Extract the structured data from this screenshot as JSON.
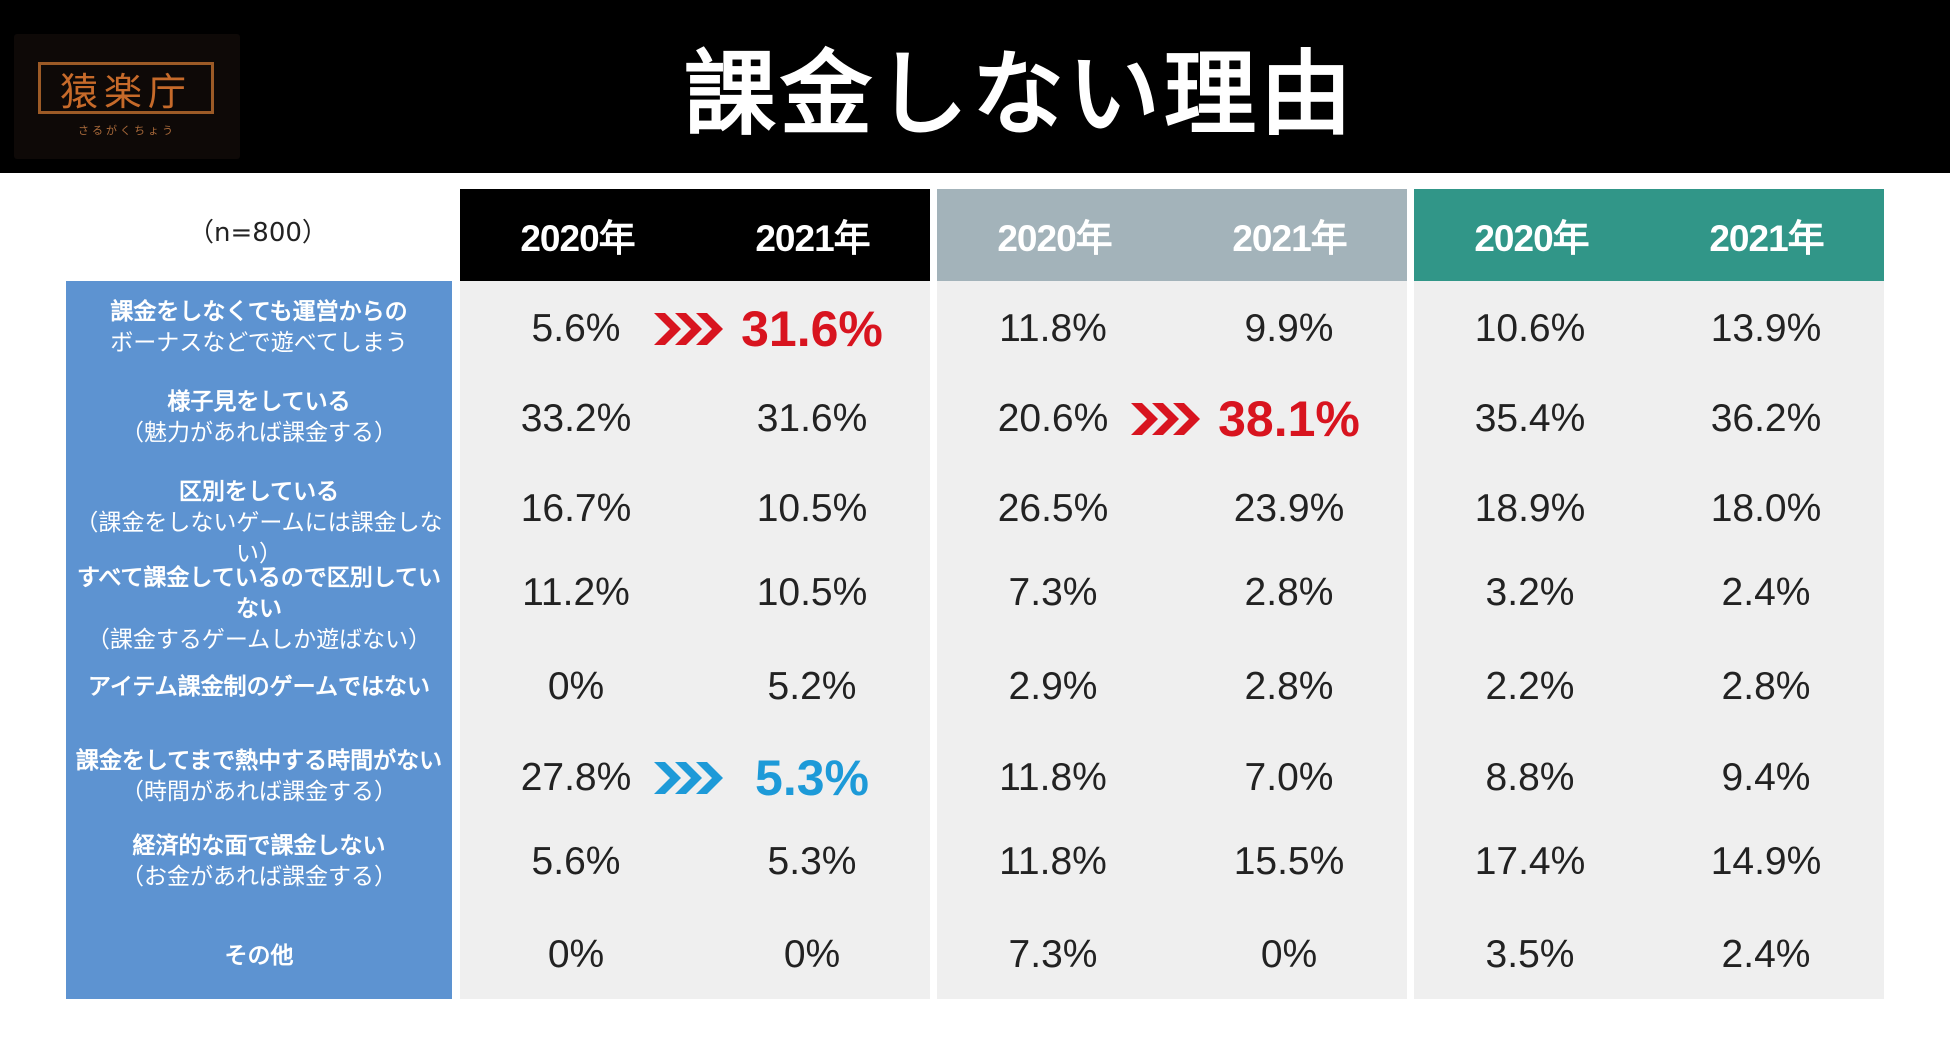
{
  "header": {
    "title": "課金しない理由",
    "logo_text": "猿楽庁",
    "logo_sub": "さるがくちょう"
  },
  "n_label": "（n=800）",
  "colors": {
    "header_bg": "#000000",
    "panel1_header": "#000000",
    "panel2_header": "#a3b3ba",
    "panel3_header": "#319688",
    "row_label_bg": "#5d93d1",
    "increase": "#d8141f",
    "decrease": "#1d9ad8"
  },
  "chart_data": {
    "type": "table",
    "title": "課金しない理由",
    "sample_size": "（n=800）",
    "rows": [
      {
        "line1": "課金をしなくても運営からの",
        "line2": "ボーナスなどで遊べてしまう"
      },
      {
        "line1": "様子見をしている",
        "line2": "（魅力があれば課金する）"
      },
      {
        "line1": "区別をしている",
        "line2": "（課金をしないゲームには課金しない）"
      },
      {
        "line1": "すべて課金しているので区別していない",
        "line2": "（課金するゲームしか遊ばない）"
      },
      {
        "line1": "アイテム課金制のゲームではない",
        "line2": ""
      },
      {
        "line1": "課金をしてまで熱中する時間がない",
        "line2": "（時間があれば課金する）"
      },
      {
        "line1": "経済的な面で課金しない",
        "line2": "（お金があれば課金する）"
      },
      {
        "line1": "その他",
        "line2": ""
      }
    ],
    "groups": [
      {
        "header_color": "#000000",
        "columns": [
          "2020年",
          "2021年"
        ],
        "values_2020": [
          "5.6%",
          "33.2%",
          "16.7%",
          "11.2%",
          "0%",
          "27.8%",
          "5.6%",
          "0%"
        ],
        "values_2021": [
          "31.6%",
          "31.6%",
          "10.5%",
          "10.5%",
          "5.2%",
          "5.3%",
          "5.3%",
          "0%"
        ]
      },
      {
        "header_color": "#a3b3ba",
        "columns": [
          "2020年",
          "2021年"
        ],
        "values_2020": [
          "11.8%",
          "20.6%",
          "26.5%",
          "7.3%",
          "2.9%",
          "11.8%",
          "11.8%",
          "7.3%"
        ],
        "values_2021": [
          "9.9%",
          "38.1%",
          "23.9%",
          "2.8%",
          "2.8%",
          "7.0%",
          "15.5%",
          "0%"
        ]
      },
      {
        "header_color": "#319688",
        "columns": [
          "2020年",
          "2021年"
        ],
        "values_2020": [
          "10.6%",
          "35.4%",
          "18.9%",
          "3.2%",
          "2.2%",
          "8.8%",
          "17.4%",
          "3.5%"
        ],
        "values_2021": [
          "13.9%",
          "36.2%",
          "18.0%",
          "2.4%",
          "2.8%",
          "9.4%",
          "14.9%",
          "2.4%"
        ]
      }
    ],
    "highlights": [
      {
        "group": 0,
        "row": 0,
        "direction": "up",
        "color": "#d8141f"
      },
      {
        "group": 1,
        "row": 1,
        "direction": "up",
        "color": "#d8141f"
      },
      {
        "group": 0,
        "row": 5,
        "direction": "down",
        "color": "#1d9ad8"
      }
    ]
  }
}
